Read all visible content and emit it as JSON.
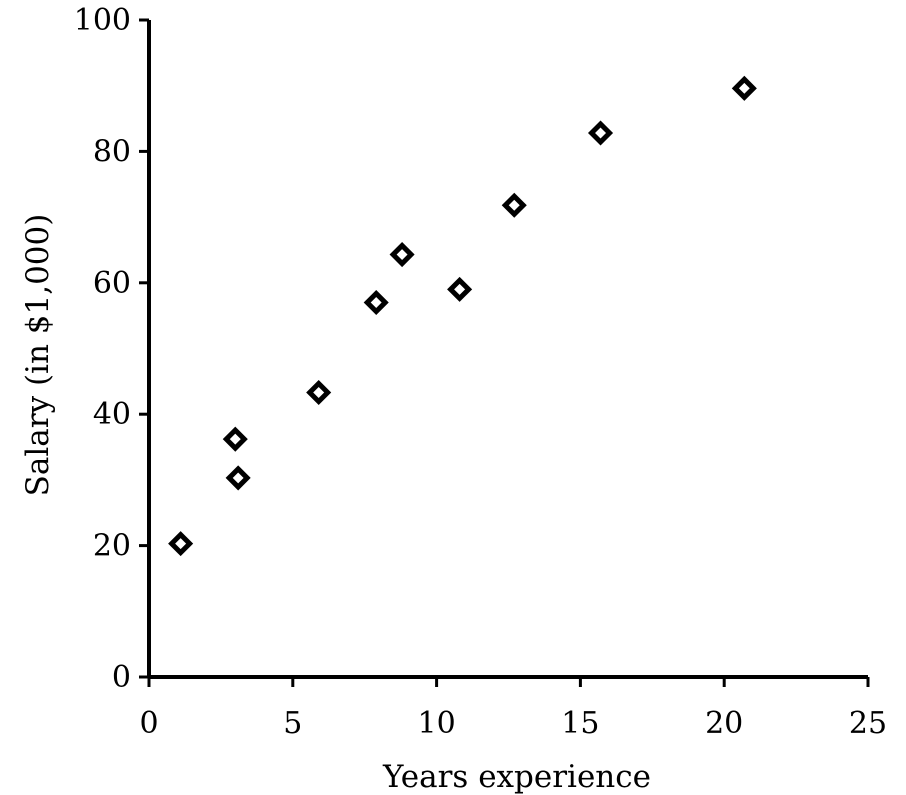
{
  "chart_data": {
    "type": "scatter",
    "title": "",
    "xlabel": "Years experience",
    "ylabel": "Salary (in $1,000)",
    "xlim": [
      0,
      25
    ],
    "ylim": [
      0,
      100
    ],
    "xticks": [
      0,
      5,
      10,
      15,
      20,
      25
    ],
    "yticks": [
      0,
      20,
      40,
      60,
      80,
      100
    ],
    "grid": false,
    "legend": "none",
    "marker": "diamond",
    "marker_color": "#000000",
    "series": [
      {
        "points": [
          {
            "x": 1.1,
            "y": 20.3
          },
          {
            "x": 3.0,
            "y": 36.2
          },
          {
            "x": 3.1,
            "y": 30.3
          },
          {
            "x": 5.9,
            "y": 43.3
          },
          {
            "x": 7.9,
            "y": 57.0
          },
          {
            "x": 8.8,
            "y": 64.3
          },
          {
            "x": 10.8,
            "y": 59.0
          },
          {
            "x": 12.7,
            "y": 71.8
          },
          {
            "x": 15.7,
            "y": 82.8
          },
          {
            "x": 20.7,
            "y": 89.6
          }
        ]
      }
    ]
  }
}
